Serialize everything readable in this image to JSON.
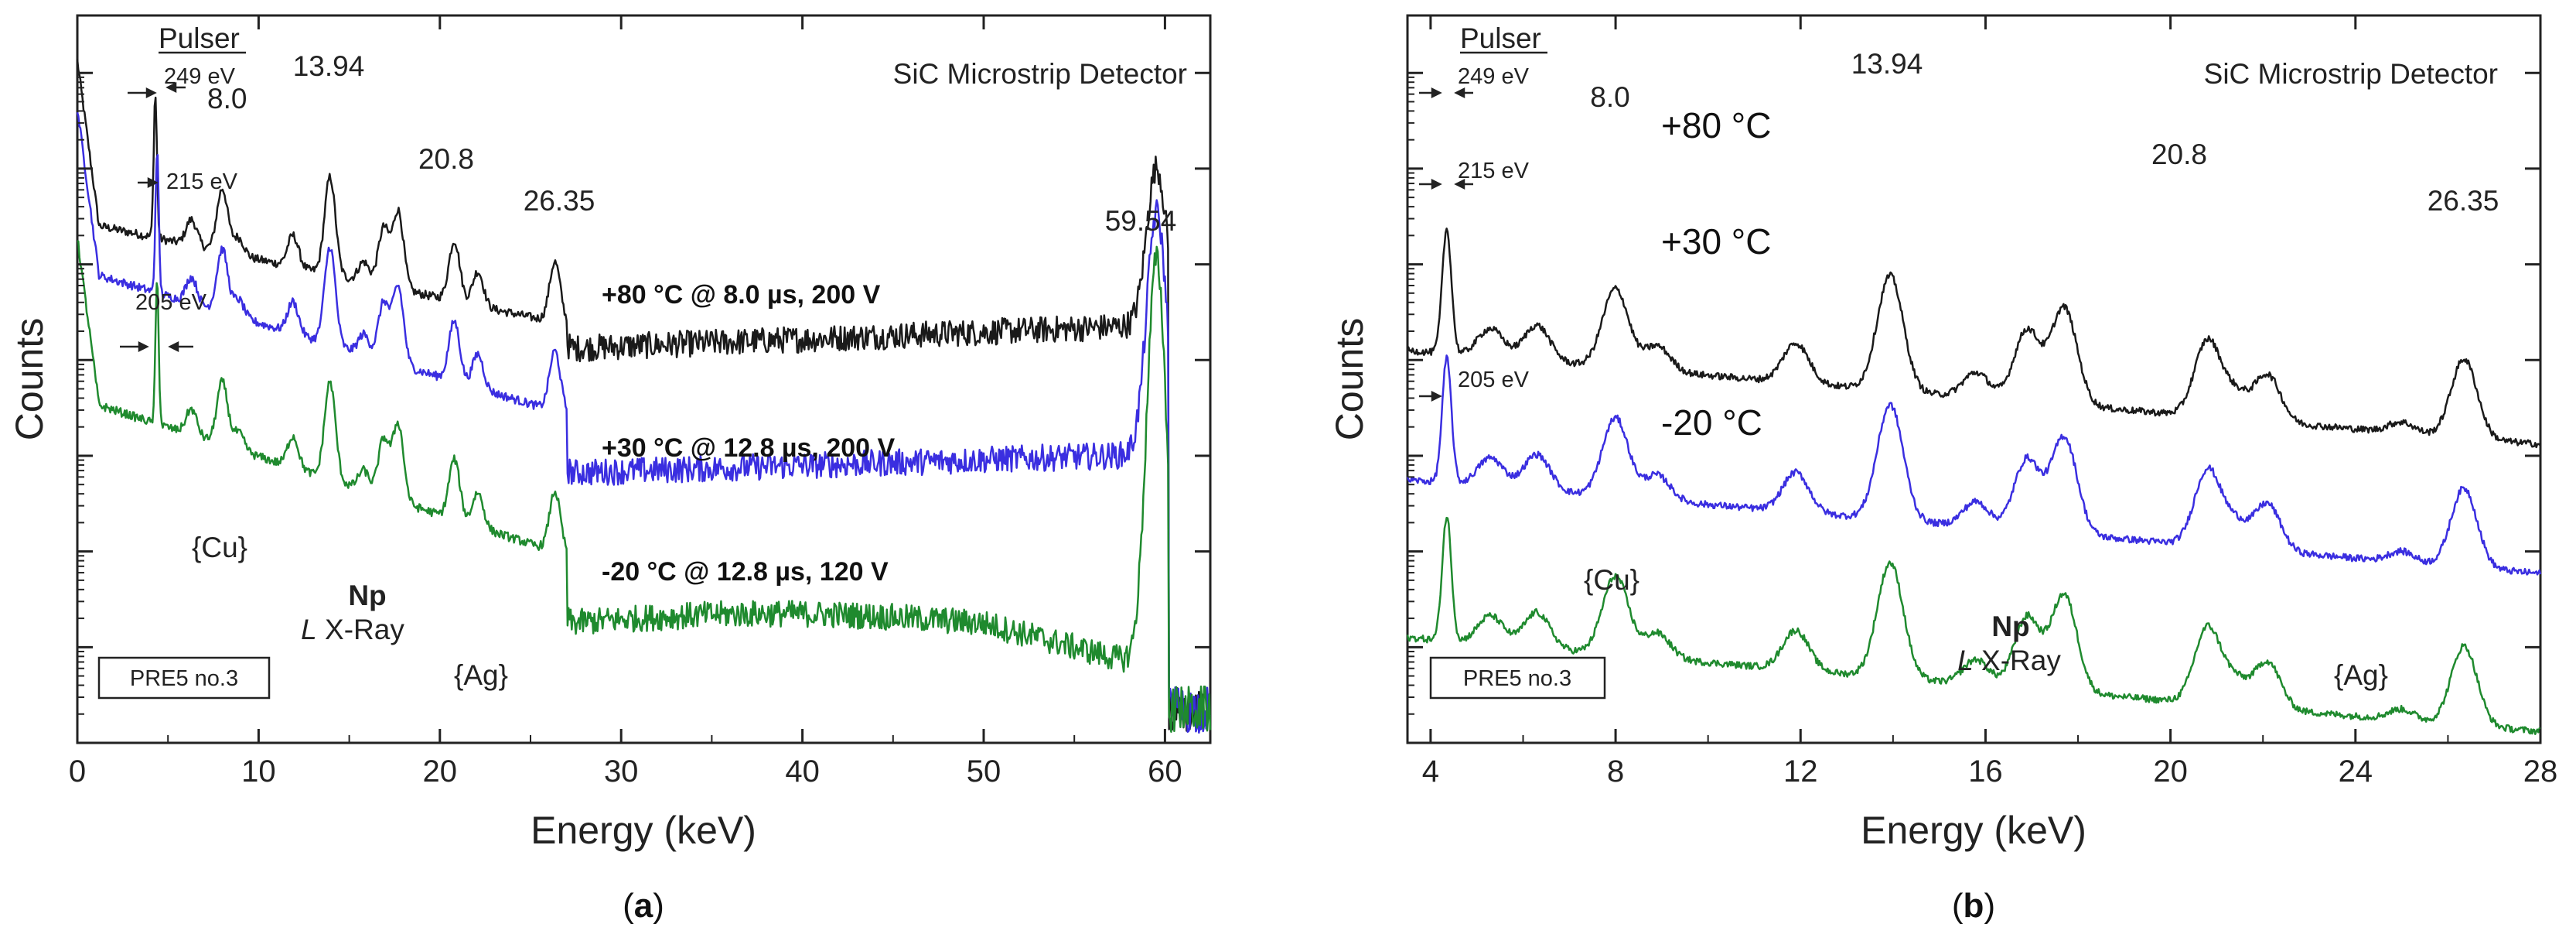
{
  "colors": {
    "top": "#1a1a1a",
    "mid": "#3a2ee0",
    "bot": "#1f8a2e",
    "axis": "#222222"
  },
  "chart_data": [
    {
      "id": "a",
      "type": "line",
      "panel_label": "a",
      "title": "SiC Microstrip Detector",
      "xlabel": "Energy (keV)",
      "ylabel": "Counts",
      "xlim": [
        0,
        62.5
      ],
      "y_scale": "log (arbitrary, stacked)",
      "xticks": [
        0,
        10,
        20,
        30,
        40,
        50,
        60
      ],
      "box_label": "PRE5 no.3",
      "annotations": {
        "pulser": "Pulser",
        "pulser_widths": [
          "249 eV",
          "215 eV",
          "205 eV"
        ],
        "peaks": [
          "8.0",
          "13.94",
          "20.8",
          "26.35",
          "59.54"
        ],
        "cu": "{Cu}",
        "ag": "{Ag}",
        "np": "Np",
        "lxray_l": "L",
        "lxray_rest": " X-Ray"
      },
      "series": [
        {
          "name": "+80 °C @ 8.0 µs, 200 V",
          "color_key": "top",
          "baseline": 7.45,
          "plateau_level": 6.12,
          "plateau_slope": 0.0075,
          "pulser_keV": 4.3
        },
        {
          "name": "+30 °C @ 12.8 µs, 200 V",
          "color_key": "mid",
          "baseline": 6.95,
          "plateau_level": 4.82,
          "plateau_slope": 0.006,
          "pulser_keV": 4.4
        },
        {
          "name": "-20 °C @ 12.8 µs, 120 V",
          "color_key": "bot",
          "baseline": 5.6,
          "plateau_level": 3.25,
          "plateau_slope": -0.003,
          "pulser_keV": 4.4
        }
      ],
      "peaks_keV": [
        {
          "e": 6.3,
          "h": 0.45
        },
        {
          "e": 8.0,
          "h": 1.1
        },
        {
          "e": 8.9,
          "h": 0.3
        },
        {
          "e": 11.9,
          "h": 0.55
        },
        {
          "e": 13.94,
          "h": 1.7
        },
        {
          "e": 15.8,
          "h": 0.35
        },
        {
          "e": 16.9,
          "h": 1.0
        },
        {
          "e": 17.7,
          "h": 1.35
        },
        {
          "e": 20.8,
          "h": 1.05
        },
        {
          "e": 22.1,
          "h": 0.6
        },
        {
          "e": 26.35,
          "h": 1.05
        },
        {
          "e": 59.54,
          "h": 2.2
        }
      ]
    },
    {
      "id": "b",
      "type": "line",
      "panel_label": "b",
      "title": "SiC Microstrip Detector",
      "xlabel": "Energy (keV)",
      "ylabel": "Counts",
      "xlim": [
        3.5,
        28
      ],
      "y_scale": "log (arbitrary, stacked)",
      "xticks": [
        4,
        8,
        12,
        16,
        20,
        24,
        28
      ],
      "box_label": "PRE5 no.3",
      "annotations": {
        "pulser": "Pulser",
        "pulser_widths": [
          "249 eV",
          "215 eV",
          "205 eV"
        ],
        "peaks": [
          "8.0",
          "13.94",
          "20.8",
          "26.35"
        ],
        "cu": "{Cu}",
        "ag": "{Ag}",
        "np": "Np",
        "lxray_l": "L",
        "lxray_rest": " X-Ray"
      },
      "series": [
        {
          "name": "+80 °C",
          "color_key": "top",
          "offset": 6.1,
          "pulser_keV": 4.35
        },
        {
          "name": "+30 °C",
          "color_key": "mid",
          "offset": 4.75,
          "pulser_keV": 4.35
        },
        {
          "name": "-20 °C",
          "color_key": "bot",
          "offset": 3.1,
          "pulser_keV": 4.35
        }
      ],
      "peaks_keV": [
        {
          "e": 5.3,
          "h": 0.4
        },
        {
          "e": 6.3,
          "h": 0.5
        },
        {
          "e": 8.0,
          "h": 1.1
        },
        {
          "e": 8.9,
          "h": 0.35
        },
        {
          "e": 11.9,
          "h": 0.55
        },
        {
          "e": 13.94,
          "h": 1.6
        },
        {
          "e": 15.8,
          "h": 0.35
        },
        {
          "e": 16.9,
          "h": 1.0
        },
        {
          "e": 17.7,
          "h": 1.35
        },
        {
          "e": 20.8,
          "h": 1.05
        },
        {
          "e": 21.4,
          "h": 0.35
        },
        {
          "e": 22.1,
          "h": 0.65
        },
        {
          "e": 25.0,
          "h": 0.15
        },
        {
          "e": 26.35,
          "h": 1.1
        }
      ]
    }
  ]
}
